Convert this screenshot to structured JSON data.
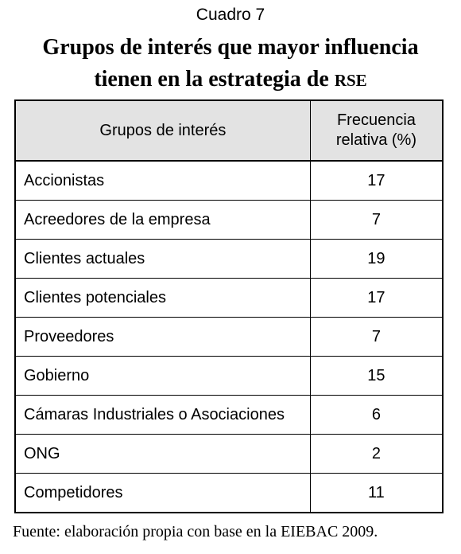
{
  "caption": "Cuadro 7",
  "title": {
    "line1": "Grupos de interés que mayor influencia",
    "line2_text": "tienen en la estrategia de ",
    "line2_abbrev": "RSE"
  },
  "table": {
    "headers": {
      "group": "Grupos de interés",
      "frequency_line1": "Frecuencia",
      "frequency_line2": "relativa (%)"
    },
    "rows": [
      {
        "group": "Accionistas",
        "frequency": "17"
      },
      {
        "group": "Acreedores de la empresa",
        "frequency": "7"
      },
      {
        "group": "Clientes actuales",
        "frequency": "19"
      },
      {
        "group": "Clientes potenciales",
        "frequency": "17"
      },
      {
        "group": "Proveedores",
        "frequency": "7"
      },
      {
        "group": "Gobierno",
        "frequency": "15"
      },
      {
        "group": "Cámaras Industriales o Asociaciones",
        "frequency": "6"
      },
      {
        "group": "ONG",
        "frequency": "2"
      },
      {
        "group": "Competidores",
        "frequency": "11"
      }
    ]
  },
  "source": "Fuente: elaboración propia con base en la EIEBAC 2009."
}
